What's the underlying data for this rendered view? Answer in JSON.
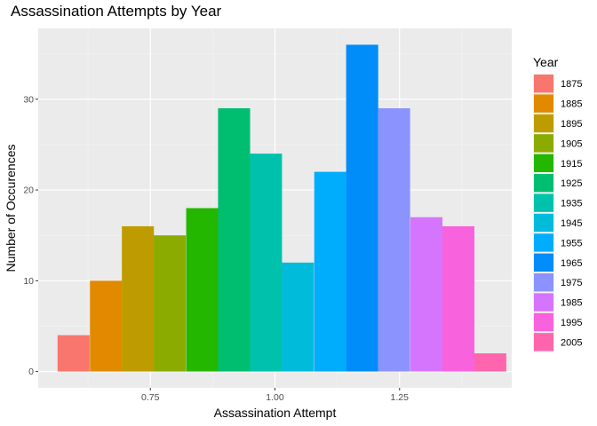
{
  "chart_data": {
    "type": "bar",
    "title": "Assassination Attempts by Year",
    "xlabel": "Assassination Attempt",
    "ylabel": "Number of Occurences",
    "legend_title": "Year",
    "legend_position": "right",
    "grid": true,
    "x_ticks": [
      "0.75",
      "1.00",
      "1.25"
    ],
    "y_ticks": [
      "0",
      "10",
      "20",
      "30"
    ],
    "xlim": [
      0.525,
      1.475
    ],
    "ylim": [
      -1.8,
      37.8
    ],
    "bar_width": 0.0643,
    "series": [
      {
        "name": "1875",
        "x": 0.596,
        "value": 4,
        "color": "#F8766D"
      },
      {
        "name": "1885",
        "x": 0.661,
        "value": 10,
        "color": "#E18A00"
      },
      {
        "name": "1895",
        "x": 0.725,
        "value": 16,
        "color": "#BE9C00"
      },
      {
        "name": "1905",
        "x": 0.789,
        "value": 15,
        "color": "#8CAB00"
      },
      {
        "name": "1915",
        "x": 0.854,
        "value": 18,
        "color": "#24B700"
      },
      {
        "name": "1925",
        "x": 0.918,
        "value": 29,
        "color": "#00BE70"
      },
      {
        "name": "1935",
        "x": 0.982,
        "value": 24,
        "color": "#00C1AB"
      },
      {
        "name": "1945",
        "x": 1.046,
        "value": 12,
        "color": "#00BBDA"
      },
      {
        "name": "1955",
        "x": 1.111,
        "value": 22,
        "color": "#00ACFC"
      },
      {
        "name": "1965",
        "x": 1.175,
        "value": 36,
        "color": "#008DF9"
      },
      {
        "name": "1975",
        "x": 1.239,
        "value": 29,
        "color": "#8B93FF"
      },
      {
        "name": "1985",
        "x": 1.304,
        "value": 17,
        "color": "#D575FE"
      },
      {
        "name": "1995",
        "x": 1.368,
        "value": 16,
        "color": "#F962DD"
      },
      {
        "name": "2005",
        "x": 1.432,
        "value": 2,
        "color": "#FF65AC"
      }
    ]
  }
}
